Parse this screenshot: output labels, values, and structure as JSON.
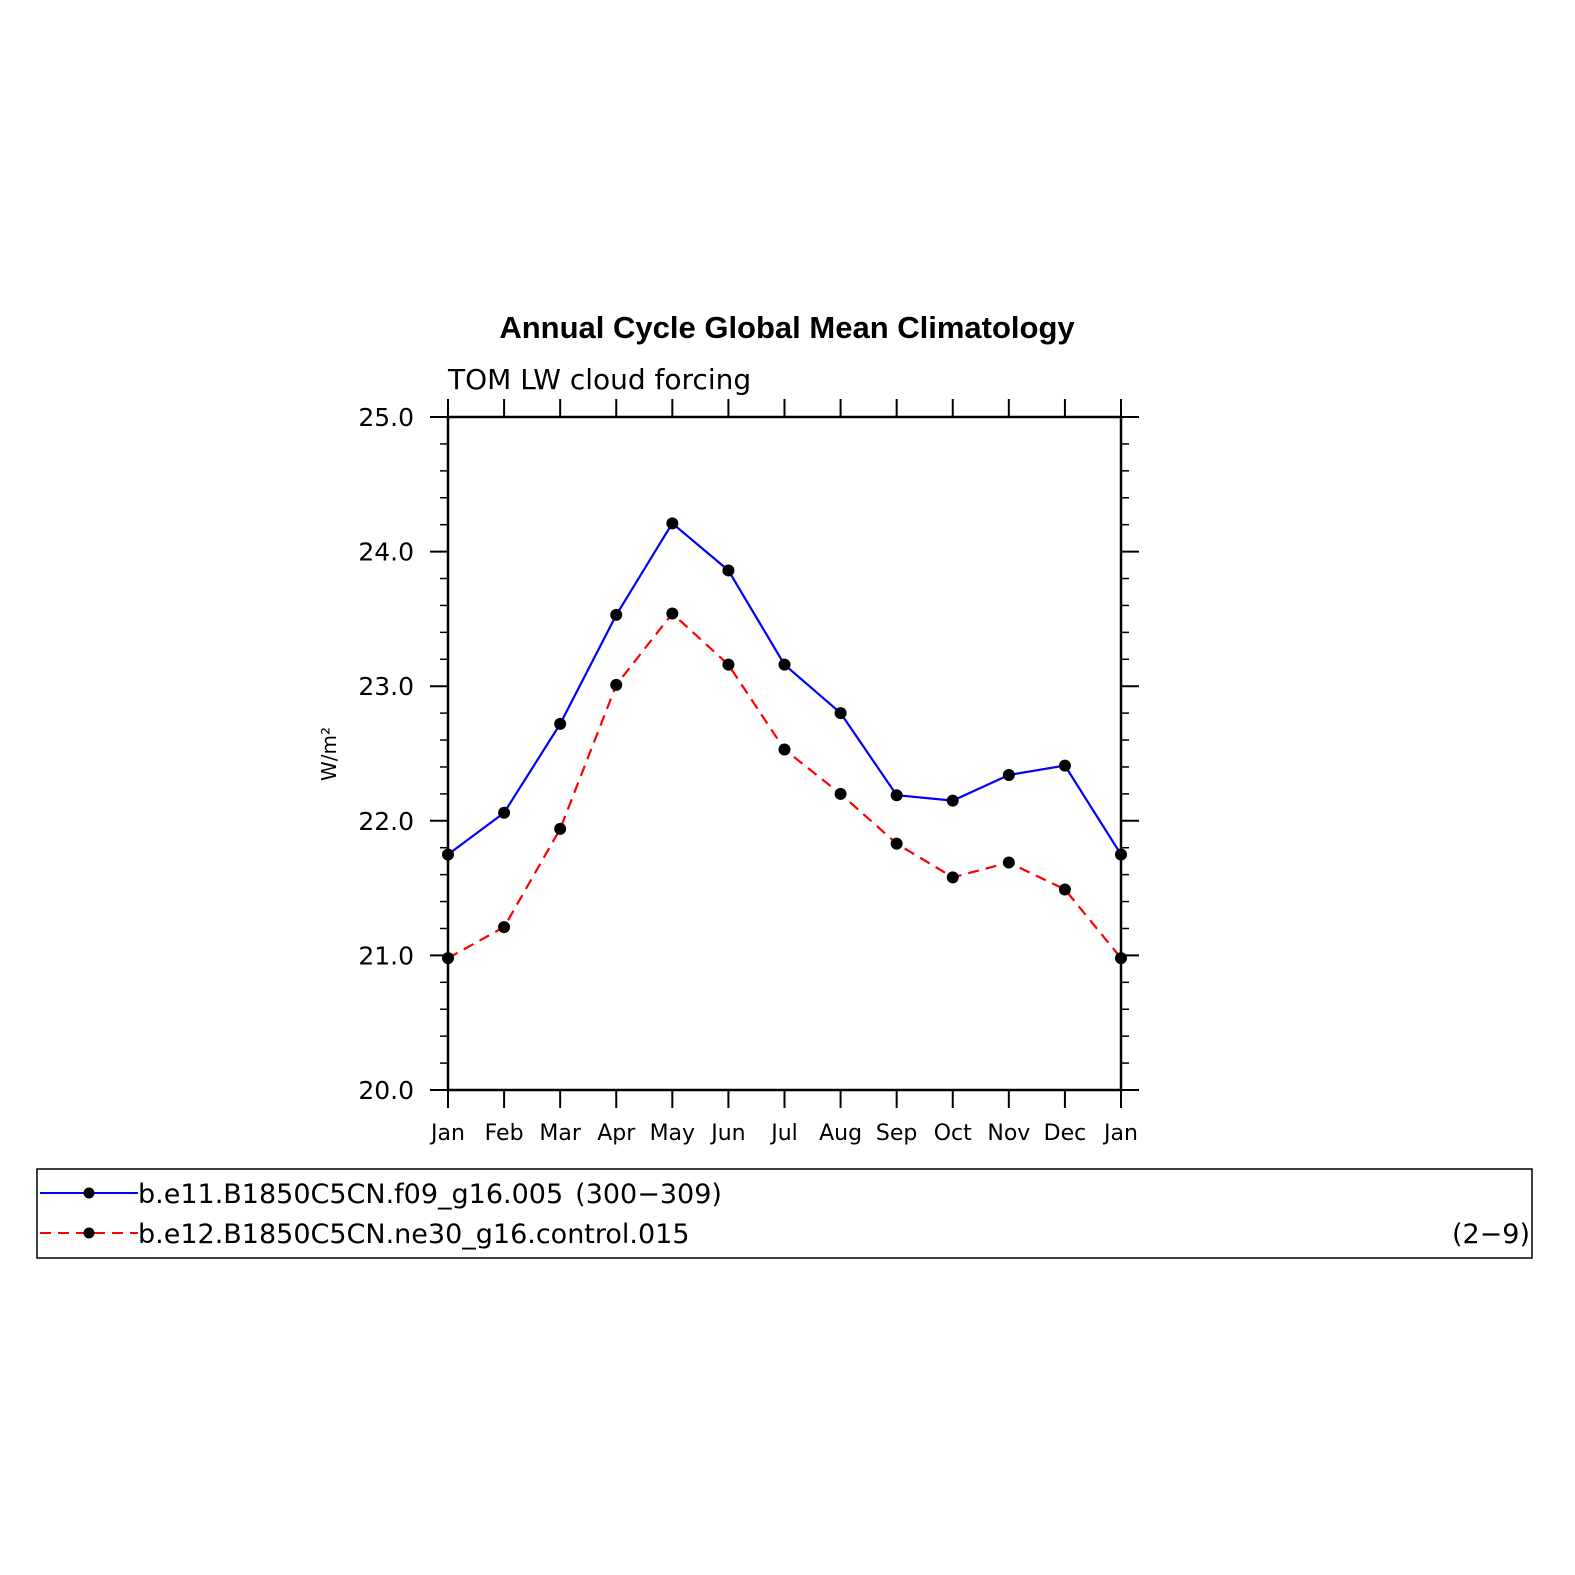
{
  "chart_data": {
    "type": "line",
    "title": "Annual Cycle Global Mean Climatology",
    "subtitle": "TOM LW cloud forcing",
    "xlabel": "",
    "ylabel": "W/m²",
    "ylim": [
      20.0,
      25.0
    ],
    "yticks": [
      "20.0",
      "21.0",
      "22.0",
      "23.0",
      "24.0",
      "25.0"
    ],
    "categories": [
      "Jan",
      "Feb",
      "Mar",
      "Apr",
      "May",
      "Jun",
      "Jul",
      "Aug",
      "Sep",
      "Oct",
      "Nov",
      "Dec",
      "Jan"
    ],
    "grid": false,
    "legend_position": "bottom",
    "series": [
      {
        "name": "b.e11.B1850C5CN.f09_g16.005",
        "years": "(300−309)",
        "color": "#0000ff",
        "dash": "solid",
        "values": [
          21.75,
          22.06,
          22.72,
          23.53,
          24.21,
          23.86,
          23.16,
          22.8,
          22.19,
          22.15,
          22.34,
          22.41,
          21.75
        ]
      },
      {
        "name": "b.e12.B1850C5CN.ne30_g16.control.015",
        "years": "(2−9)",
        "color": "#ff0000",
        "dash": "dashed",
        "values": [
          20.98,
          21.21,
          21.94,
          23.01,
          23.54,
          23.16,
          22.53,
          22.2,
          21.83,
          21.58,
          21.69,
          21.49,
          20.98
        ]
      }
    ]
  }
}
